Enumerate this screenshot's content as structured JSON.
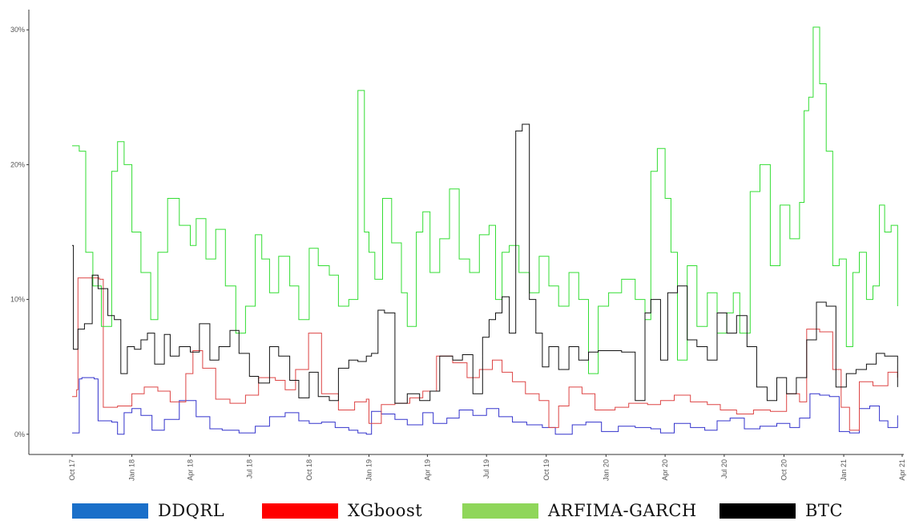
{
  "chart_data": {
    "type": "line",
    "title": "",
    "xlabel": "",
    "ylabel": "",
    "x_ticks": [
      "Oct 17",
      "Jan 18",
      "Apr 18",
      "Jul 18",
      "Oct 18",
      "Jan 19",
      "Apr 19",
      "Jul 19",
      "Oct 19",
      "Jan 20",
      "Apr 20",
      "Jul 20",
      "Oct 20",
      "Jan 21",
      "Apr 21"
    ],
    "y_ticks": [
      "0%",
      "10%",
      "20%",
      "30%"
    ],
    "y_tick_values": [
      0,
      10,
      20,
      30
    ],
    "xlim": [
      "2017-10-01",
      "2021-04-01"
    ],
    "ylim": [
      -1.5,
      31.5
    ],
    "grid": false,
    "legend_position": "bottom",
    "series": [
      {
        "name": "DDQRL",
        "color": "#3333cc",
        "x": [
          "2017-10-01",
          "2017-10-12",
          "2017-10-16",
          "2017-11-04",
          "2017-11-10",
          "2017-12-01",
          "2017-12-10",
          "2017-12-20",
          "2018-01-01",
          "2018-01-15",
          "2018-02-01",
          "2018-02-20",
          "2018-03-15",
          "2018-04-10",
          "2018-05-01",
          "2018-05-20",
          "2018-06-15",
          "2018-07-10",
          "2018-08-01",
          "2018-08-25",
          "2018-09-15",
          "2018-10-01",
          "2018-10-20",
          "2018-11-10",
          "2018-12-01",
          "2018-12-15",
          "2018-12-28",
          "2019-01-05",
          "2019-01-20",
          "2019-02-10",
          "2019-03-01",
          "2019-03-25",
          "2019-04-10",
          "2019-05-01",
          "2019-05-20",
          "2019-06-10",
          "2019-07-01",
          "2019-07-20",
          "2019-08-10",
          "2019-09-01",
          "2019-09-25",
          "2019-10-15",
          "2019-11-10",
          "2019-12-01",
          "2019-12-25",
          "2020-01-20",
          "2020-02-15",
          "2020-03-10",
          "2020-03-25",
          "2020-04-15",
          "2020-05-10",
          "2020-06-01",
          "2020-06-20",
          "2020-07-10",
          "2020-08-01",
          "2020-08-25",
          "2020-09-20",
          "2020-10-10",
          "2020-10-25",
          "2020-11-10",
          "2020-11-25",
          "2020-12-10",
          "2020-12-25",
          "2021-01-10",
          "2021-01-25",
          "2021-02-10",
          "2021-02-25",
          "2021-03-10",
          "2021-03-25"
        ],
        "y": [
          0.1,
          4.1,
          4.2,
          4.1,
          1.0,
          0.9,
          0.0,
          1.6,
          1.9,
          1.4,
          0.3,
          1.1,
          2.5,
          1.3,
          0.4,
          0.3,
          0.1,
          0.6,
          1.3,
          1.6,
          1.0,
          0.8,
          0.9,
          0.5,
          0.3,
          0.1,
          0.0,
          1.7,
          1.5,
          1.1,
          0.7,
          1.6,
          0.8,
          1.2,
          1.8,
          1.4,
          1.9,
          1.3,
          0.9,
          0.7,
          0.5,
          0.0,
          0.7,
          0.9,
          0.2,
          0.6,
          0.5,
          0.4,
          0.1,
          0.8,
          0.5,
          0.3,
          1.0,
          1.2,
          0.4,
          0.6,
          0.8,
          0.5,
          1.2,
          3.0,
          2.9,
          2.8,
          0.2,
          0.1,
          1.9,
          2.1,
          1.0,
          0.5,
          1.4
        ]
      },
      {
        "name": "XGboost",
        "color": "#dd4444",
        "x": [
          "2017-10-01",
          "2017-10-08",
          "2017-10-10",
          "2017-11-12",
          "2017-11-18",
          "2017-12-10",
          "2018-01-01",
          "2018-01-20",
          "2018-02-10",
          "2018-03-01",
          "2018-03-25",
          "2018-04-05",
          "2018-04-20",
          "2018-05-10",
          "2018-06-01",
          "2018-06-25",
          "2018-07-15",
          "2018-08-10",
          "2018-08-25",
          "2018-09-10",
          "2018-09-30",
          "2018-10-20",
          "2018-11-15",
          "2018-12-10",
          "2018-12-28",
          "2019-01-01",
          "2019-01-20",
          "2019-02-10",
          "2019-03-05",
          "2019-03-25",
          "2019-04-15",
          "2019-05-10",
          "2019-06-01",
          "2019-06-20",
          "2019-07-10",
          "2019-07-25",
          "2019-08-10",
          "2019-08-30",
          "2019-09-20",
          "2019-10-05",
          "2019-10-20",
          "2019-11-05",
          "2019-11-25",
          "2019-12-15",
          "2020-01-15",
          "2020-02-05",
          "2020-03-05",
          "2020-03-25",
          "2020-04-15",
          "2020-05-10",
          "2020-06-05",
          "2020-06-25",
          "2020-07-20",
          "2020-08-15",
          "2020-09-10",
          "2020-10-05",
          "2020-10-25",
          "2020-11-05",
          "2020-11-25",
          "2020-12-15",
          "2020-12-28",
          "2021-01-10",
          "2021-01-25",
          "2021-02-15",
          "2021-03-10",
          "2021-03-25"
        ],
        "y": [
          2.8,
          3.3,
          11.6,
          11.5,
          2.0,
          2.1,
          3.0,
          3.5,
          3.2,
          2.4,
          4.5,
          6.2,
          4.9,
          2.6,
          2.3,
          2.9,
          4.2,
          4.0,
          3.3,
          4.8,
          7.5,
          3.0,
          1.8,
          2.4,
          2.6,
          0.8,
          2.2,
          2.3,
          2.7,
          3.2,
          5.8,
          5.3,
          4.2,
          4.8,
          5.5,
          4.6,
          3.9,
          3.0,
          2.5,
          0.5,
          2.1,
          3.5,
          3.0,
          1.8,
          2.0,
          2.3,
          2.2,
          2.5,
          2.9,
          2.4,
          2.2,
          1.8,
          1.5,
          1.8,
          1.7,
          3.0,
          2.4,
          7.8,
          7.6,
          4.8,
          2.0,
          0.3,
          3.9,
          3.6,
          4.6,
          4.2
        ]
      },
      {
        "name": "ARFIMA-GARCH",
        "color": "#33dd33",
        "x": [
          "2017-10-01",
          "2017-10-12",
          "2017-10-22",
          "2017-11-02",
          "2017-11-15",
          "2017-12-01",
          "2017-12-10",
          "2017-12-20",
          "2018-01-01",
          "2018-01-15",
          "2018-01-30",
          "2018-02-10",
          "2018-02-25",
          "2018-03-15",
          "2018-04-01",
          "2018-04-10",
          "2018-04-25",
          "2018-05-10",
          "2018-05-25",
          "2018-06-10",
          "2018-06-25",
          "2018-07-10",
          "2018-07-20",
          "2018-08-01",
          "2018-08-15",
          "2018-09-01",
          "2018-09-15",
          "2018-10-01",
          "2018-10-15",
          "2018-11-01",
          "2018-11-15",
          "2018-12-01",
          "2018-12-15",
          "2018-12-25",
          "2019-01-01",
          "2019-01-10",
          "2019-01-22",
          "2019-02-05",
          "2019-02-20",
          "2019-03-01",
          "2019-03-15",
          "2019-03-25",
          "2019-04-05",
          "2019-04-20",
          "2019-05-05",
          "2019-05-20",
          "2019-06-05",
          "2019-06-20",
          "2019-07-05",
          "2019-07-15",
          "2019-07-25",
          "2019-08-05",
          "2019-08-20",
          "2019-09-05",
          "2019-09-20",
          "2019-10-05",
          "2019-10-20",
          "2019-11-05",
          "2019-11-20",
          "2019-12-05",
          "2019-12-20",
          "2020-01-05",
          "2020-01-25",
          "2020-02-15",
          "2020-03-01",
          "2020-03-10",
          "2020-03-20",
          "2020-04-01",
          "2020-04-10",
          "2020-04-20",
          "2020-05-05",
          "2020-05-20",
          "2020-06-05",
          "2020-06-20",
          "2020-07-05",
          "2020-07-15",
          "2020-07-25",
          "2020-08-10",
          "2020-08-25",
          "2020-09-10",
          "2020-09-25",
          "2020-10-10",
          "2020-10-25",
          "2020-11-01",
          "2020-11-08",
          "2020-11-15",
          "2020-11-25",
          "2020-12-05",
          "2020-12-15",
          "2020-12-25",
          "2021-01-05",
          "2021-01-15",
          "2021-01-25",
          "2021-02-05",
          "2021-02-15",
          "2021-02-25",
          "2021-03-05",
          "2021-03-15",
          "2021-03-25"
        ],
        "y": [
          21.4,
          21.0,
          13.5,
          11.0,
          8.0,
          19.5,
          21.7,
          20.0,
          15.0,
          12.0,
          8.5,
          13.5,
          17.5,
          15.5,
          14.0,
          16.0,
          13.0,
          15.2,
          11.0,
          7.5,
          9.5,
          14.8,
          13.0,
          10.5,
          13.2,
          11.0,
          8.5,
          13.8,
          12.5,
          11.8,
          9.5,
          10.0,
          25.5,
          15.0,
          13.5,
          11.5,
          17.5,
          14.2,
          10.5,
          8.0,
          15.0,
          16.5,
          12.0,
          14.5,
          18.2,
          13.0,
          12.0,
          14.8,
          15.5,
          10.0,
          13.5,
          14.0,
          12.0,
          10.5,
          13.2,
          11.0,
          9.5,
          12.0,
          10.0,
          4.5,
          9.5,
          10.5,
          11.5,
          10.0,
          8.5,
          19.5,
          21.2,
          17.5,
          13.5,
          5.5,
          12.5,
          8.0,
          10.5,
          7.5,
          9.0,
          10.5,
          7.5,
          18.0,
          20.0,
          12.5,
          17.0,
          14.5,
          17.2,
          24.0,
          25.0,
          30.2,
          26.0,
          21.0,
          12.5,
          13.0,
          6.5,
          12.0,
          13.5,
          10.0,
          11.0,
          17.0,
          15.0,
          15.5,
          9.5
        ]
      },
      {
        "name": "BTC",
        "color": "#111111",
        "x": [
          "2017-10-01",
          "2017-10-03",
          "2017-10-10",
          "2017-10-20",
          "2017-11-01",
          "2017-11-10",
          "2017-11-25",
          "2017-12-05",
          "2017-12-15",
          "2017-12-25",
          "2018-01-05",
          "2018-01-15",
          "2018-01-25",
          "2018-02-05",
          "2018-02-20",
          "2018-03-01",
          "2018-03-15",
          "2018-04-01",
          "2018-04-15",
          "2018-05-01",
          "2018-05-15",
          "2018-06-01",
          "2018-06-15",
          "2018-07-01",
          "2018-07-15",
          "2018-08-01",
          "2018-08-15",
          "2018-09-01",
          "2018-09-15",
          "2018-10-01",
          "2018-10-15",
          "2018-11-01",
          "2018-11-15",
          "2018-12-01",
          "2018-12-15",
          "2018-12-28",
          "2019-01-05",
          "2019-01-15",
          "2019-01-25",
          "2019-02-10",
          "2019-03-01",
          "2019-03-20",
          "2019-04-05",
          "2019-04-20",
          "2019-05-10",
          "2019-05-25",
          "2019-06-10",
          "2019-06-25",
          "2019-07-05",
          "2019-07-15",
          "2019-07-25",
          "2019-08-05",
          "2019-08-15",
          "2019-08-25",
          "2019-09-05",
          "2019-09-15",
          "2019-09-25",
          "2019-10-05",
          "2019-10-20",
          "2019-11-05",
          "2019-11-20",
          "2019-12-05",
          "2019-12-20",
          "2020-01-05",
          "2020-01-25",
          "2020-02-15",
          "2020-03-01",
          "2020-03-10",
          "2020-03-25",
          "2020-04-05",
          "2020-04-20",
          "2020-05-05",
          "2020-05-20",
          "2020-06-05",
          "2020-06-20",
          "2020-07-05",
          "2020-07-20",
          "2020-08-05",
          "2020-08-20",
          "2020-09-05",
          "2020-09-20",
          "2020-10-05",
          "2020-10-20",
          "2020-11-05",
          "2020-11-20",
          "2020-12-05",
          "2020-12-20",
          "2021-01-05",
          "2021-01-20",
          "2021-02-05",
          "2021-02-20",
          "2021-03-05",
          "2021-03-25"
        ],
        "y": [
          14.0,
          6.3,
          7.8,
          8.2,
          11.8,
          10.8,
          8.8,
          8.5,
          4.5,
          6.5,
          6.3,
          7.0,
          7.5,
          5.2,
          7.4,
          5.8,
          6.5,
          6.1,
          8.2,
          5.5,
          6.5,
          7.7,
          6.0,
          4.3,
          3.8,
          6.5,
          5.8,
          4.0,
          2.7,
          4.6,
          2.8,
          2.5,
          4.9,
          5.5,
          5.4,
          5.8,
          6.0,
          9.2,
          9.0,
          2.3,
          3.0,
          2.5,
          3.2,
          5.8,
          5.5,
          5.9,
          3.0,
          7.2,
          8.5,
          9.0,
          10.2,
          7.5,
          22.5,
          23.0,
          10.0,
          7.5,
          5.0,
          6.5,
          4.8,
          6.5,
          5.5,
          6.1,
          6.2,
          6.2,
          6.1,
          2.5,
          9.0,
          10.0,
          5.5,
          10.5,
          11.0,
          7.0,
          6.5,
          5.5,
          9.0,
          7.5,
          8.8,
          6.5,
          3.5,
          2.5,
          4.2,
          3.0,
          4.2,
          7.0,
          9.8,
          9.5,
          3.5,
          4.5,
          4.8,
          5.2,
          6.0,
          5.8,
          3.5
        ]
      }
    ]
  },
  "legend": {
    "items": [
      {
        "label": "DDQRL",
        "color": "#1a6fc9"
      },
      {
        "label": "XGboost",
        "color": "#ff0000"
      },
      {
        "label": "ARFIMA-GARCH",
        "color": "#8fd65a"
      },
      {
        "label": "BTC",
        "color": "#000000"
      }
    ]
  }
}
